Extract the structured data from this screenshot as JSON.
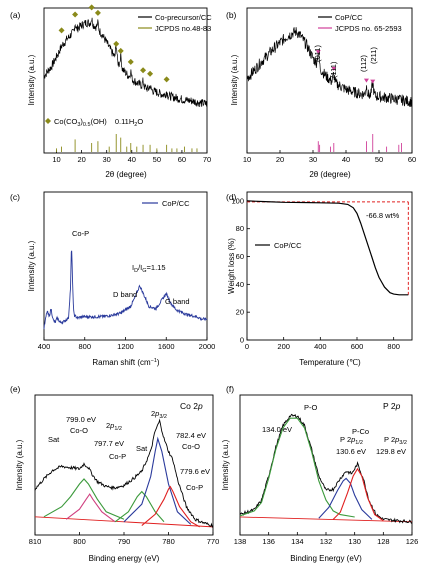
{
  "chart_data": [
    {
      "panel": "(a)",
      "type": "line",
      "xlabel": "2θ (degree)",
      "ylabel": "Intensity (a.u.)",
      "xlim": [
        5,
        70
      ],
      "xticks": [
        "10",
        "20",
        "30",
        "40",
        "50",
        "60",
        "70"
      ],
      "legend": {
        "position": "top-right",
        "entries": [
          "Co-precursor/CC",
          "JCPDS no.48-83"
        ]
      },
      "annotations": [
        "Co(CO3)0.5(OH)·0.11H2O"
      ],
      "series": [
        {
          "name": "Co-precursor/CC",
          "color": "#000000",
          "x": [
            5,
            8,
            10,
            12,
            14,
            16,
            18,
            20,
            22,
            24,
            26,
            28,
            30,
            32,
            34,
            36,
            38,
            40,
            42,
            44,
            46,
            48,
            50,
            52,
            55,
            58,
            61,
            64,
            67,
            70
          ],
          "y": [
            0.35,
            0.45,
            0.55,
            0.66,
            0.73,
            0.79,
            0.84,
            0.88,
            0.91,
            0.9,
            0.86,
            0.79,
            0.7,
            0.6,
            0.51,
            0.43,
            0.37,
            0.32,
            0.28,
            0.25,
            0.22,
            0.2,
            0.18,
            0.16,
            0.14,
            0.12,
            0.1,
            0.09,
            0.07,
            0.06
          ]
        }
      ],
      "peaks": [
        {
          "x": 17.4,
          "h": 0.07
        },
        {
          "x": 24.0,
          "h": 0.05
        },
        {
          "x": 26.5,
          "h": 0.06
        },
        {
          "x": 33.8,
          "h": 0.16
        },
        {
          "x": 35.6,
          "h": 0.12
        },
        {
          "x": 39.6,
          "h": 0.07
        },
        {
          "x": 44.5,
          "h": 0.05
        },
        {
          "x": 47.3,
          "h": 0.04
        },
        {
          "x": 53.9,
          "h": 0.04
        }
      ],
      "markers_x": [
        12,
        17.4,
        24,
        26.5,
        33.8,
        35.6,
        39.6,
        44.5,
        47.3,
        53.9
      ],
      "reference_lines": {
        "color": "#8a8a1a",
        "x": [
          10,
          12,
          17.4,
          24,
          26.5,
          31,
          33.8,
          35.6,
          38,
          39.6,
          42,
          44.5,
          47.3,
          50,
          53.9,
          56,
          58,
          61,
          64,
          66
        ],
        "h": [
          0.2,
          0.3,
          0.7,
          0.5,
          0.6,
          0.3,
          1.0,
          0.8,
          0.3,
          0.5,
          0.3,
          0.4,
          0.4,
          0.2,
          0.4,
          0.2,
          0.2,
          0.3,
          0.2,
          0.2
        ]
      }
    },
    {
      "panel": "(b)",
      "type": "line",
      "xlabel": "2θ (degree)",
      "ylabel": "Intensity (a.u.)",
      "xlim": [
        10,
        60
      ],
      "xticks": [
        "10",
        "20",
        "30",
        "40",
        "50",
        "60"
      ],
      "legend": {
        "position": "top-right",
        "entries": [
          "CoP/CC",
          "JCPDS no. 65-2593"
        ]
      },
      "annotations": [
        "(011)",
        "(111)",
        "(112)",
        "(211)"
      ],
      "series": [
        {
          "name": "CoP/CC",
          "color": "#000000",
          "x": [
            10,
            12,
            14,
            16,
            18,
            20,
            22,
            24,
            25,
            26,
            28,
            30,
            32,
            34,
            36,
            38,
            40,
            42,
            44,
            46,
            48,
            50,
            52,
            54,
            56,
            58,
            60
          ],
          "y": [
            0.45,
            0.52,
            0.6,
            0.67,
            0.74,
            0.8,
            0.86,
            0.9,
            0.91,
            0.88,
            0.78,
            0.65,
            0.55,
            0.47,
            0.41,
            0.38,
            0.34,
            0.32,
            0.3,
            0.29,
            0.28,
            0.27,
            0.26,
            0.25,
            0.24,
            0.23,
            0.22
          ]
        }
      ],
      "peaks": [
        {
          "x": 31.6,
          "h": 0.14
        },
        {
          "x": 36.3,
          "h": 0.08
        },
        {
          "x": 46.2,
          "h": 0.08
        },
        {
          "x": 48.1,
          "h": 0.12
        }
      ],
      "markers_x": [
        31.6,
        36.3,
        46.2,
        48.1
      ],
      "reference_lines": {
        "color": "#d0409a",
        "x": [
          31.6,
          32.0,
          35.3,
          36.3,
          46.2,
          48.1,
          52.3,
          56.0,
          56.8
        ],
        "h": [
          0.6,
          0.4,
          0.3,
          0.5,
          0.6,
          1.0,
          0.3,
          0.4,
          0.5
        ]
      }
    },
    {
      "panel": "(c)",
      "type": "line",
      "xlabel": "Raman shift (cm⁻¹)",
      "ylabel": "Intensity (a.u.)",
      "xlim": [
        400,
        2000
      ],
      "xticks": [
        "400",
        "800",
        "1200",
        "1600",
        "2000"
      ],
      "legend": {
        "position": "top-right",
        "entries": [
          "CoP/CC"
        ]
      },
      "annotations": [
        "Co-P",
        "D band",
        "G band",
        "ID/IG=1.15"
      ],
      "series": [
        {
          "name": "CoP/CC",
          "color": "#2a3a9c",
          "x": [
            400,
            430,
            450,
            470,
            490,
            510,
            530,
            560,
            600,
            640,
            660,
            670,
            680,
            690,
            700,
            730,
            780,
            850,
            950,
            1050,
            1150,
            1250,
            1300,
            1340,
            1380,
            1430,
            1500,
            1560,
            1600,
            1650,
            1700,
            1800,
            1900,
            1950,
            2000
          ],
          "y": [
            0.05,
            0.2,
            0.15,
            0.22,
            0.12,
            0.1,
            0.14,
            0.1,
            0.11,
            0.14,
            0.4,
            0.78,
            0.48,
            0.2,
            0.16,
            0.14,
            0.15,
            0.15,
            0.15,
            0.16,
            0.18,
            0.24,
            0.33,
            0.42,
            0.34,
            0.24,
            0.22,
            0.3,
            0.35,
            0.26,
            0.21,
            0.17,
            0.15,
            0.13,
            0.13
          ]
        }
      ]
    },
    {
      "panel": "(d)",
      "type": "line",
      "xlabel": "Temperature (℃)",
      "ylabel": "Weight loss (%)",
      "xlim": [
        0,
        900
      ],
      "ylim": [
        0,
        100
      ],
      "xticks": [
        "0",
        "200",
        "400",
        "600",
        "800"
      ],
      "yticks": [
        "0",
        "20",
        "40",
        "60",
        "80",
        "100"
      ],
      "legend": {
        "position": "center-left",
        "entries": [
          "CoP/CC"
        ]
      },
      "annotations": [
        "-66.8 wt%"
      ],
      "series": [
        {
          "name": "CoP/CC",
          "color": "#000000",
          "x": [
            0,
            100,
            200,
            300,
            400,
            500,
            550,
            580,
            600,
            620,
            650,
            680,
            700,
            720,
            750,
            780,
            800,
            830,
            850,
            880
          ],
          "y": [
            100,
            99.5,
            99,
            98.8,
            98.6,
            98.3,
            97.5,
            95,
            91,
            84,
            72,
            60,
            52,
            45,
            38,
            34,
            33,
            32.5,
            32.5,
            32.5
          ]
        }
      ],
      "guide": {
        "color": "#e02020",
        "level_top": 99.3,
        "level_bottom": 32.5,
        "x": 880
      }
    },
    {
      "panel": "(e)",
      "type": "line",
      "xlabel": "Binding energy (eV)",
      "ylabel": "Intensity (a.u.)",
      "xlim": [
        810,
        770
      ],
      "xticks": [
        "810",
        "800",
        "790",
        "780",
        "770"
      ],
      "title": "Co 2p",
      "annotations": [
        "799.0 eV",
        "Co-O",
        "2p1/2",
        "797.7 eV",
        "Co-P",
        "Sat",
        "Sat",
        "2p3/2",
        "782.4 eV",
        "Co-O",
        "779.6 eV",
        "Co-P"
      ],
      "background": {
        "color": "#e02020",
        "x": [
          810,
          770
        ],
        "y": [
          0.1,
          0.02
        ]
      },
      "series": [
        {
          "name": "raw",
          "color": "#000000",
          "x": [
            810,
            808,
            806,
            804,
            802,
            800,
            799,
            798,
            797,
            796,
            795,
            794,
            792,
            790,
            788,
            786,
            784,
            783,
            782,
            781,
            780,
            779,
            778,
            776,
            774,
            772,
            770
          ],
          "y": [
            0.32,
            0.4,
            0.47,
            0.5,
            0.49,
            0.48,
            0.52,
            0.49,
            0.43,
            0.38,
            0.36,
            0.34,
            0.33,
            0.35,
            0.4,
            0.46,
            0.62,
            0.78,
            0.86,
            0.72,
            0.62,
            0.55,
            0.4,
            0.18,
            0.08,
            0.05,
            0.03
          ]
        },
        {
          "name": "Co-O 2p1/2",
          "color": "#3c9a3c",
          "x": [
            808,
            804,
            802,
            800,
            799,
            798,
            796,
            794,
            790
          ],
          "y": [
            0.1,
            0.18,
            0.26,
            0.36,
            0.4,
            0.36,
            0.24,
            0.14,
            0.08
          ]
        },
        {
          "name": "Co-P 2p1/2",
          "color": "#d04080",
          "x": [
            803,
            800,
            798.5,
            797.7,
            797,
            795,
            792
          ],
          "y": [
            0.08,
            0.16,
            0.24,
            0.28,
            0.24,
            0.14,
            0.06
          ]
        },
        {
          "name": "Sat",
          "color": "#3c9a3c",
          "x": [
            792,
            789,
            787,
            786,
            785,
            783,
            781
          ],
          "y": [
            0.06,
            0.14,
            0.26,
            0.3,
            0.26,
            0.14,
            0.06
          ]
        },
        {
          "name": "Co-O 2p3/2",
          "color": "#2a3a9c",
          "x": [
            790,
            786,
            784,
            783,
            782.4,
            781.5,
            780,
            778,
            775
          ],
          "y": [
            0.06,
            0.2,
            0.42,
            0.62,
            0.72,
            0.62,
            0.36,
            0.14,
            0.04
          ]
        },
        {
          "name": "Co-P 2p3/2",
          "color": "#e02020",
          "x": [
            786,
            783,
            781,
            780,
            779.6,
            779,
            777.5,
            775,
            773
          ],
          "y": [
            0.03,
            0.12,
            0.24,
            0.32,
            0.34,
            0.3,
            0.18,
            0.06,
            0.02
          ]
        }
      ]
    },
    {
      "panel": "(f)",
      "type": "line",
      "xlabel": "Binding Energy (eV)",
      "ylabel": "Intensity (a.u.)",
      "xlim": [
        138,
        126
      ],
      "xticks": [
        "138",
        "136",
        "134",
        "132",
        "130",
        "128",
        "126"
      ],
      "title": "P 2p",
      "annotations": [
        "P-O",
        "134.0 eV",
        "P 2p1/2",
        "130.6 eV",
        "P-Co",
        "P 2p3/2",
        "129.8 eV"
      ],
      "background": {
        "color": "#e02020",
        "x": [
          138,
          126
        ],
        "y": [
          0.08,
          0.04
        ]
      },
      "series": [
        {
          "name": "raw",
          "color": "#000000",
          "x": [
            138,
            137,
            136.5,
            136,
            135.5,
            135,
            134.5,
            134,
            133.5,
            133,
            132.5,
            132,
            131.5,
            131,
            130.6,
            130.2,
            129.8,
            129.4,
            129,
            128.5,
            128,
            127,
            126
          ],
          "y": [
            0.1,
            0.14,
            0.22,
            0.42,
            0.66,
            0.84,
            0.92,
            0.92,
            0.84,
            0.64,
            0.42,
            0.3,
            0.31,
            0.4,
            0.46,
            0.44,
            0.52,
            0.4,
            0.22,
            0.1,
            0.06,
            0.05,
            0.04
          ]
        },
        {
          "name": "P-O",
          "color": "#3c9a3c",
          "x": [
            138,
            137,
            136.5,
            136,
            135.5,
            135,
            134.5,
            134,
            133.5,
            133,
            132.5,
            132,
            131.5,
            131,
            130
          ],
          "y": [
            0.09,
            0.13,
            0.2,
            0.4,
            0.64,
            0.82,
            0.9,
            0.9,
            0.82,
            0.62,
            0.38,
            0.22,
            0.13,
            0.1,
            0.08
          ]
        },
        {
          "name": "P 2p1/2",
          "color": "#2a3a9c",
          "x": [
            132.5,
            131.8,
            131.2,
            130.8,
            130.6,
            130.3,
            130,
            129.5,
            128.8
          ],
          "y": [
            0.07,
            0.16,
            0.3,
            0.38,
            0.4,
            0.36,
            0.26,
            0.14,
            0.06
          ]
        },
        {
          "name": "P 2p3/2",
          "color": "#e02020",
          "x": [
            131.5,
            131,
            130.5,
            130.1,
            129.8,
            129.5,
            129.1,
            128.6,
            128
          ],
          "y": [
            0.06,
            0.12,
            0.28,
            0.42,
            0.48,
            0.42,
            0.24,
            0.1,
            0.05
          ]
        }
      ]
    }
  ],
  "labels": {
    "a": {
      "panel": "(a)",
      "leg1": "Co-precursor/CC",
      "leg2": "JCPDS no.48-83",
      "xlabel": "2θ (degree)",
      "ylabel": "Intensity (a.u.)",
      "compound_a": "Co(CO",
      "compound_b": "3",
      "compound_c": ")",
      "compound_d": "0.5",
      "compound_e": "(OH)",
      "compound_f": "0.11H",
      "compound_g": "2",
      "compound_h": "O"
    },
    "b": {
      "panel": "(b)",
      "leg1": "CoP/CC",
      "leg2": "JCPDS no. 65-2593",
      "xlabel": "2θ (degree)",
      "ylabel": "Intensity (a.u.)",
      "p011": "(011)",
      "p111": "(111)",
      "p112": "(112)",
      "p211": "(211)"
    },
    "c": {
      "panel": "(c)",
      "leg1": "CoP/CC",
      "xlabel": "Raman shift (cm",
      "xlabel_sup": "−1",
      "xlabel_end": ")",
      "ylabel": "Intensity (a.u.)",
      "cop": "Co-P",
      "dband": "D band",
      "gband": "G band",
      "ratio_a": "I",
      "ratio_b": "D",
      "ratio_c": "/I",
      "ratio_d": "G",
      "ratio_e": "=1.15"
    },
    "d": {
      "panel": "(d)",
      "leg1": "CoP/CC",
      "xlabel": "Temperature (℃)",
      "ylabel": "Weight loss (%)",
      "loss": "-66.8 wt%"
    },
    "e": {
      "panel": "(e)",
      "title_a": "Co 2",
      "title_b": "p",
      "xlabel": "Binding energy (eV)",
      "ylabel": "Intensity (a.u.)",
      "e7990": "799.0 eV",
      "coo1": "Co-O",
      "p12a": "2",
      "p12b": "p",
      "p12c": "1/2",
      "e7977": "797.7 eV",
      "cop1": "Co-P",
      "sat1": "Sat",
      "sat2": "Sat",
      "p32a": "2",
      "p32b": "p",
      "p32c": "3/2",
      "e7824": "782.4 eV",
      "coo2": "Co-O",
      "e7796": "779.6 eV",
      "cop2": "Co-P"
    },
    "f": {
      "panel": "(f)",
      "title_a": "P 2",
      "title_b": "p",
      "xlabel": "Binding Energy (eV)",
      "ylabel": "Intensity (a.u.)",
      "po": "P-O",
      "e1340": "134.0 eV",
      "p12a": "P 2",
      "p12b": "p",
      "p12c": "1/2",
      "e1306": "130.6 eV",
      "pco": "P-Co",
      "p32a": "P 2",
      "p32b": "p",
      "p32c": "3/2",
      "e1298": "129.8 eV"
    }
  }
}
